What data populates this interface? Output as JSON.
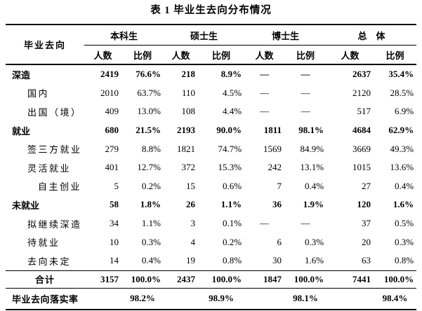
{
  "title": "表 1 毕业生去向分布情况",
  "colors": {
    "text": "#000000",
    "rule": "#000000",
    "background": "#ffffff"
  },
  "table": {
    "stub_header": "毕业去向",
    "groups": [
      "本科生",
      "硕士生",
      "博士生",
      "总　体"
    ],
    "subheaders": [
      "人数",
      "比例"
    ],
    "rows": [
      {
        "label": "深造",
        "indent": 0,
        "bold": true,
        "cells": [
          "2419",
          "76.6%",
          "218",
          "8.9%",
          "—",
          "—",
          "2637",
          "35.4%"
        ]
      },
      {
        "label": "国内",
        "indent": 1,
        "bold": false,
        "cells": [
          "2010",
          "63.7%",
          "110",
          "4.5%",
          "—",
          "—",
          "2120",
          "28.5%"
        ]
      },
      {
        "label": "出国（境）",
        "indent": 1,
        "bold": false,
        "cells": [
          "409",
          "13.0%",
          "108",
          "4.4%",
          "—",
          "—",
          "517",
          "6.9%"
        ]
      },
      {
        "label": "就业",
        "indent": 0,
        "bold": true,
        "cells": [
          "680",
          "21.5%",
          "2193",
          "90.0%",
          "1811",
          "98.1%",
          "4684",
          "62.9%"
        ]
      },
      {
        "label": "签三方就业",
        "indent": 1,
        "bold": false,
        "cells": [
          "279",
          "8.8%",
          "1821",
          "74.7%",
          "1569",
          "84.9%",
          "3669",
          "49.3%"
        ]
      },
      {
        "label": "灵活就业",
        "indent": 1,
        "bold": false,
        "cells": [
          "401",
          "12.7%",
          "372",
          "15.3%",
          "242",
          "13.1%",
          "1015",
          "13.6%"
        ]
      },
      {
        "label": "自主创业",
        "indent": 2,
        "bold": false,
        "cells": [
          "5",
          "0.2%",
          "15",
          "0.6%",
          "7",
          "0.4%",
          "27",
          "0.4%"
        ]
      },
      {
        "label": "未就业",
        "indent": 0,
        "bold": true,
        "cells": [
          "58",
          "1.8%",
          "26",
          "1.1%",
          "36",
          "1.9%",
          "120",
          "1.6%"
        ]
      },
      {
        "label": "拟继续深造",
        "indent": 1,
        "bold": false,
        "cells": [
          "34",
          "1.1%",
          "3",
          "0.1%",
          "—",
          "—",
          "37",
          "0.5%"
        ]
      },
      {
        "label": "待就业",
        "indent": 1,
        "bold": false,
        "cells": [
          "10",
          "0.3%",
          "4",
          "0.2%",
          "6",
          "0.3%",
          "20",
          "0.3%"
        ]
      },
      {
        "label": "去向未定",
        "indent": 1,
        "bold": false,
        "cells": [
          "14",
          "0.4%",
          "19",
          "0.8%",
          "30",
          "1.6%",
          "63",
          "0.8%"
        ]
      }
    ],
    "total_row": {
      "label": "合计",
      "cells": [
        "3157",
        "100.0%",
        "2437",
        "100.0%",
        "1847",
        "100.0%",
        "7441",
        "100.0%"
      ]
    },
    "rate_row": {
      "label": "毕业去向落实率",
      "cells": [
        "98.2%",
        "98.9%",
        "98.1%",
        "98.4%"
      ]
    }
  }
}
